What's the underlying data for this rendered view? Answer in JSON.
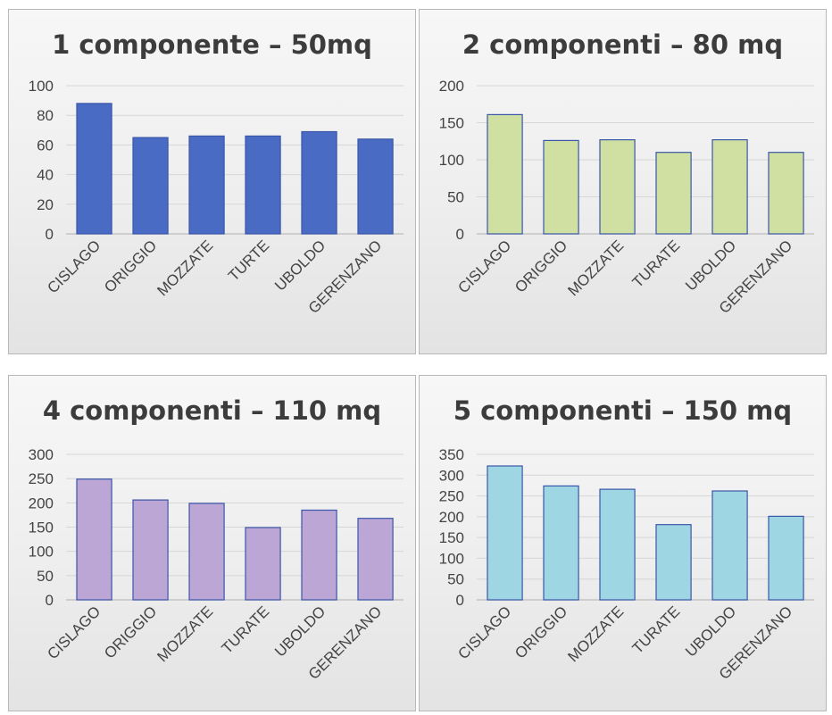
{
  "chart_data": [
    {
      "type": "bar",
      "title": "1 componente – 50mq",
      "categories": [
        "CISLAGO",
        "ORIGGIO",
        "MOZZATE",
        "TURTE",
        "UBOLDO",
        "GERENZANO"
      ],
      "values": [
        88,
        65,
        66,
        66,
        69,
        64
      ],
      "ylim": [
        0,
        100
      ],
      "yticks": [
        0,
        20,
        40,
        60,
        80,
        100
      ],
      "grid": true,
      "colors": {
        "fill": "#4a6bc4",
        "stroke": "#3a56a8"
      }
    },
    {
      "type": "bar",
      "title": "2 componenti – 80 mq",
      "categories": [
        "CISLAGO",
        "ORIGGIO",
        "MOZZATE",
        "TURATE",
        "UBOLDO",
        "GERENZANO"
      ],
      "values": [
        161,
        126,
        127,
        110,
        127,
        110
      ],
      "ylim": [
        0,
        200
      ],
      "yticks": [
        0,
        50,
        100,
        150,
        200
      ],
      "grid": true,
      "colors": {
        "fill": "#cfe0a2",
        "stroke": "#3a56a8"
      }
    },
    {
      "type": "bar",
      "title": "4 componenti – 110 mq",
      "categories": [
        "CISLAGO",
        "ORIGGIO",
        "MOZZATE",
        "TURATE",
        "UBOLDO",
        "GERENZANO"
      ],
      "values": [
        249,
        206,
        199,
        149,
        185,
        168
      ],
      "ylim": [
        0,
        300
      ],
      "yticks": [
        0,
        50,
        100,
        150,
        200,
        250,
        300
      ],
      "grid": true,
      "colors": {
        "fill": "#bba6d6",
        "stroke": "#3a56a8"
      }
    },
    {
      "type": "bar",
      "title": "5 componenti – 150 mq",
      "categories": [
        "CISLAGO",
        "ORIGGIO",
        "MOZZATE",
        "TURATE",
        "UBOLDO",
        "GERENZANO"
      ],
      "values": [
        322,
        274,
        266,
        181,
        262,
        201
      ],
      "ylim": [
        0,
        350
      ],
      "yticks": [
        0,
        50,
        100,
        150,
        200,
        250,
        300,
        350
      ],
      "grid": true,
      "colors": {
        "fill": "#9fd6e4",
        "stroke": "#3a56a8"
      }
    }
  ]
}
